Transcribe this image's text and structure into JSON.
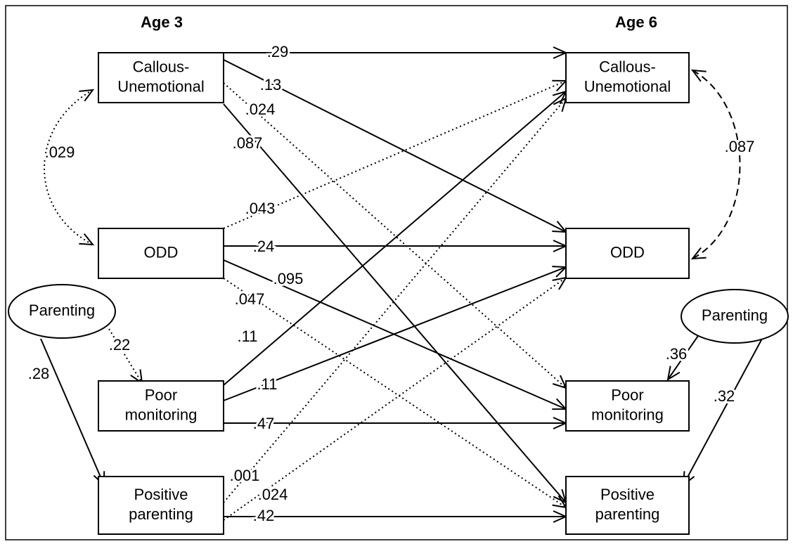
{
  "headings": [
    "Age 3",
    "Age 6"
  ],
  "nodes": [
    {
      "lines": [
        "Callous-",
        "Unemotional"
      ]
    },
    {
      "lines": [
        "ODD"
      ]
    },
    {
      "lines": [
        "Poor",
        "monitoring"
      ]
    },
    {
      "lines": [
        "Positive",
        "parenting"
      ]
    },
    {
      "lines": [
        "Callous-",
        "Unemotional"
      ]
    },
    {
      "lines": [
        "ODD"
      ]
    },
    {
      "lines": [
        "Poor",
        "monitoring"
      ]
    },
    {
      "lines": [
        "Positive",
        "parenting"
      ]
    },
    {
      "lines": [
        "Parenting"
      ]
    },
    {
      "lines": [
        "Parenting"
      ]
    }
  ],
  "edges": [
    {
      "label": ".29"
    },
    {
      "label": ".13"
    },
    {
      "label": ".024"
    },
    {
      "label": ".087"
    },
    {
      "label": ".043"
    },
    {
      "label": ".24"
    },
    {
      "label": ".095"
    },
    {
      "label": ".047"
    },
    {
      "label": ".11"
    },
    {
      "label": ".11"
    },
    {
      "label": ".47"
    },
    {
      "label": ".001"
    },
    {
      "label": ".024"
    },
    {
      "label": ".42"
    },
    {
      "label": ".22"
    },
    {
      "label": ".28"
    },
    {
      "label": ".36"
    },
    {
      "label": ".32"
    },
    {
      "label": ".029"
    },
    {
      "label": ".087"
    }
  ]
}
